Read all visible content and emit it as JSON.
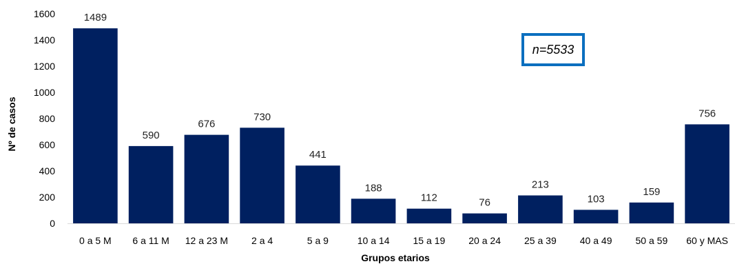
{
  "chart_data": {
    "type": "bar",
    "categories": [
      "0 a 5 M",
      "6 a 11 M",
      "12 a 23 M",
      "2 a 4",
      "5 a 9",
      "10 a 14",
      "15 a 19",
      "20 a 24",
      "25 a 39",
      "40 a 49",
      "50 a 59",
      "60 y MAS"
    ],
    "values": [
      1489,
      590,
      676,
      730,
      441,
      188,
      112,
      76,
      213,
      103,
      159,
      756
    ],
    "xlabel": "Grupos etarios",
    "ylabel": "Nº de casos",
    "ylim": [
      0,
      1600
    ],
    "yticks": [
      0,
      200,
      400,
      600,
      800,
      1000,
      1200,
      1400,
      1600
    ],
    "grid": false,
    "bar_color": "#002060",
    "annotation": "n=5533",
    "annotation_border_color": "#0b6fbf"
  }
}
